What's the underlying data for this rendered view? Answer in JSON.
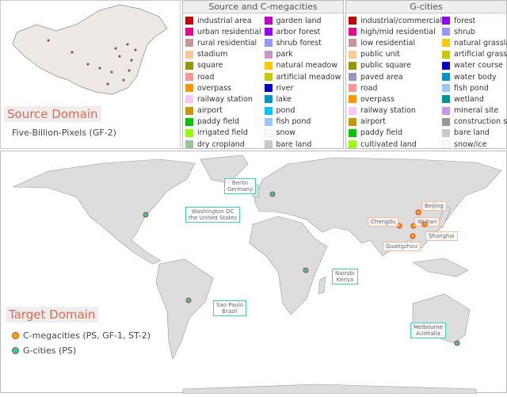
{
  "source": {
    "title": "Source Domain",
    "dataset": "Five-Billion-Pixels (GF-2)"
  },
  "target": {
    "title": "Target Domain",
    "legend": [
      {
        "label": "C-megacities (PS, GF-1, ST-2)",
        "color": "#f9a800"
      },
      {
        "label": "G-cities (PS)",
        "color": "#1fd1a6"
      }
    ]
  },
  "legend_source": {
    "title": "Source and C-megacities",
    "items": [
      {
        "label": "industrial area",
        "color": "#c80000"
      },
      {
        "label": "urban residential",
        "color": "#f0008c"
      },
      {
        "label": "rural residential",
        "color": "#c89696"
      },
      {
        "label": "stadium",
        "color": "#ffc896"
      },
      {
        "label": "square",
        "color": "#969600"
      },
      {
        "label": "road",
        "color": "#ff9696"
      },
      {
        "label": "overpass",
        "color": "#ff9600"
      },
      {
        "label": "railway station",
        "color": "#f8c8f8"
      },
      {
        "label": "airport",
        "color": "#c89600"
      },
      {
        "label": "paddy field",
        "color": "#00c800"
      },
      {
        "label": "irrigated field",
        "color": "#96ff00"
      },
      {
        "label": "dry cropland",
        "color": "#96c896"
      },
      {
        "label": "garden land",
        "color": "#c800c8"
      },
      {
        "label": "arbor forest",
        "color": "#9600ff"
      },
      {
        "label": "shrub forest",
        "color": "#9696ff"
      },
      {
        "label": "park",
        "color": "#c896c8"
      },
      {
        "label": "natural meadow",
        "color": "#ffc800"
      },
      {
        "label": "artificial meadow",
        "color": "#c8c800"
      },
      {
        "label": "river",
        "color": "#0000c8"
      },
      {
        "label": "lake",
        "color": "#0096c8"
      },
      {
        "label": "pond",
        "color": "#00c8ff"
      },
      {
        "label": "fish pond",
        "color": "#96c8ff"
      },
      {
        "label": "snow",
        "color": "#f8f8f8"
      },
      {
        "label": "bare land",
        "color": "#c8c8c8"
      }
    ]
  },
  "legend_g": {
    "title": "G-cities",
    "items": [
      {
        "label": "industrial/commercial",
        "color": "#c80000"
      },
      {
        "label": "high/mid residential",
        "color": "#f0008c"
      },
      {
        "label": "low residential",
        "color": "#c89696"
      },
      {
        "label": "public unit",
        "color": "#ffc896"
      },
      {
        "label": "public square",
        "color": "#969600"
      },
      {
        "label": "paved area",
        "color": "#9696c8"
      },
      {
        "label": "road",
        "color": "#ff9696"
      },
      {
        "label": "overpass",
        "color": "#ff9600"
      },
      {
        "label": "railway station",
        "color": "#f8c8f8"
      },
      {
        "label": "airport",
        "color": "#c89600"
      },
      {
        "label": "paddy field",
        "color": "#00c800"
      },
      {
        "label": "cultivated land",
        "color": "#96ff00"
      },
      {
        "label": "forest",
        "color": "#9600ff"
      },
      {
        "label": "shrub",
        "color": "#9696ff"
      },
      {
        "label": "natural grassland",
        "color": "#ffc800"
      },
      {
        "label": "artificial grassland",
        "color": "#c8c800"
      },
      {
        "label": "water course",
        "color": "#0000c8"
      },
      {
        "label": "water body",
        "color": "#0096c8"
      },
      {
        "label": "fish pond",
        "color": "#96c8ff"
      },
      {
        "label": "wetland",
        "color": "#009696"
      },
      {
        "label": "mineral site",
        "color": "#c896f0"
      },
      {
        "label": "construction site",
        "color": "#969696"
      },
      {
        "label": "bare land",
        "color": "#c8c8c8"
      },
      {
        "label": "snow/ice",
        "color": "#f8f8f8"
      }
    ]
  },
  "g_cities": [
    {
      "name": "Washington DC",
      "country": "the United States"
    },
    {
      "name": "Berlin",
      "country": "Germany"
    },
    {
      "name": "Nairobi",
      "country": "Kenya"
    },
    {
      "name": "Sao Paulo",
      "country": "Brazil"
    },
    {
      "name": "Melbourne",
      "country": "Australia"
    }
  ],
  "c_megacities": [
    "Beijing",
    "Chengdu",
    "Wuhan",
    "Shanghai",
    "Guangzhou"
  ]
}
